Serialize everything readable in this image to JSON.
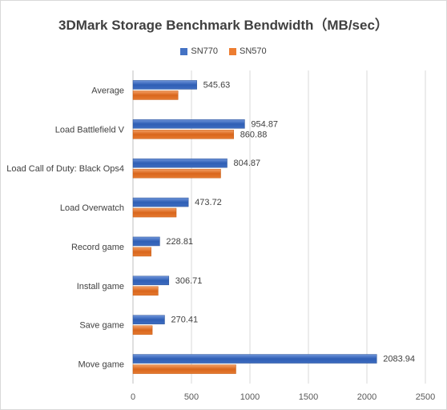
{
  "chart_data": {
    "type": "bar",
    "orientation": "horizontal",
    "title": "3DMark Storage Benchmark Bendwidth（MB/sec）",
    "categories": [
      "Average",
      "Load Battlefield V",
      "Load Call of Duty: Black Ops4",
      "Load Overwatch",
      "Record game",
      "Install game",
      "Save game",
      "Move game"
    ],
    "series": [
      {
        "name": "SN770",
        "color": "#4472C4",
        "values": [
          545.63,
          954.87,
          804.87,
          473.72,
          228.81,
          306.71,
          270.41,
          2083.94
        ],
        "labels": [
          "545.63",
          "954.87",
          "804.87",
          "473.72",
          "228.81",
          "306.71",
          "270.41",
          "2083.94"
        ]
      },
      {
        "name": "SN570",
        "color": "#ED7D31",
        "values": [
          385,
          860.88,
          750,
          370,
          155,
          215,
          165,
          880
        ],
        "labels": [
          "",
          "860.88",
          "",
          "",
          "",
          "",
          "",
          ""
        ]
      }
    ],
    "xlim": [
      0,
      2500
    ],
    "xticks": [
      "0",
      "500",
      "1000",
      "1500",
      "2000",
      "2500"
    ],
    "grid": true,
    "legend": "top"
  }
}
